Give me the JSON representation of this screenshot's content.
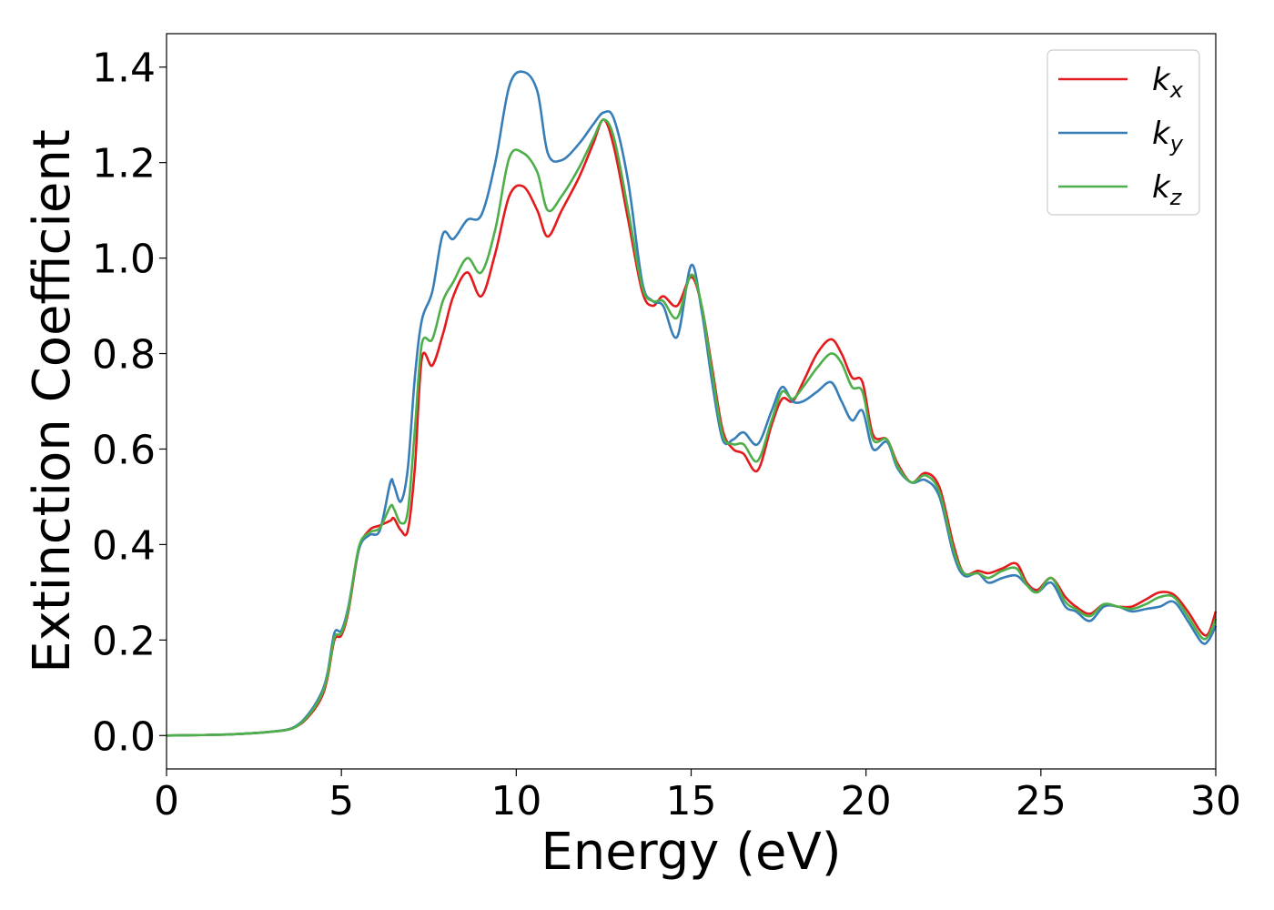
{
  "chart_data": {
    "type": "line",
    "xlabel": "Energy (eV)",
    "ylabel": "Extinction Coefficient",
    "xlim": [
      0,
      30
    ],
    "ylim": [
      -0.07,
      1.47
    ],
    "xticks": [
      0,
      5,
      10,
      15,
      20,
      25,
      30
    ],
    "yticks": [
      0.0,
      0.2,
      0.4,
      0.6,
      0.8,
      1.0,
      1.2,
      1.4
    ],
    "xtick_labels": [
      "0",
      "5",
      "10",
      "15",
      "20",
      "25",
      "30"
    ],
    "ytick_labels": [
      "0.0",
      "0.2",
      "0.4",
      "0.6",
      "0.8",
      "1.0",
      "1.2",
      "1.4"
    ],
    "grid": false,
    "legend_position": "top-right",
    "series": [
      {
        "name": "k",
        "subscript": "x",
        "color": "#e41a1c",
        "points": [
          [
            0,
            0.0
          ],
          [
            1,
            0.001
          ],
          [
            2,
            0.003
          ],
          [
            3,
            0.008
          ],
          [
            3.6,
            0.015
          ],
          [
            4,
            0.035
          ],
          [
            4.4,
            0.075
          ],
          [
            4.6,
            0.12
          ],
          [
            4.8,
            0.2
          ],
          [
            5.0,
            0.21
          ],
          [
            5.2,
            0.26
          ],
          [
            5.5,
            0.39
          ],
          [
            5.8,
            0.43
          ],
          [
            6.1,
            0.44
          ],
          [
            6.4,
            0.45
          ],
          [
            6.5,
            0.455
          ],
          [
            6.7,
            0.43
          ],
          [
            6.9,
            0.43
          ],
          [
            7.1,
            0.56
          ],
          [
            7.3,
            0.79
          ],
          [
            7.6,
            0.775
          ],
          [
            7.9,
            0.84
          ],
          [
            8.2,
            0.92
          ],
          [
            8.6,
            0.97
          ],
          [
            9.0,
            0.92
          ],
          [
            9.4,
            1.01
          ],
          [
            9.8,
            1.13
          ],
          [
            10.2,
            1.15
          ],
          [
            10.6,
            1.1
          ],
          [
            10.9,
            1.045
          ],
          [
            11.3,
            1.1
          ],
          [
            11.8,
            1.17
          ],
          [
            12.2,
            1.24
          ],
          [
            12.5,
            1.29
          ],
          [
            12.8,
            1.23
          ],
          [
            13.2,
            1.08
          ],
          [
            13.6,
            0.93
          ],
          [
            13.9,
            0.9
          ],
          [
            14.2,
            0.92
          ],
          [
            14.6,
            0.9
          ],
          [
            15.0,
            0.96
          ],
          [
            15.3,
            0.9
          ],
          [
            15.6,
            0.77
          ],
          [
            15.9,
            0.64
          ],
          [
            16.2,
            0.6
          ],
          [
            16.5,
            0.59
          ],
          [
            16.9,
            0.555
          ],
          [
            17.3,
            0.65
          ],
          [
            17.6,
            0.705
          ],
          [
            17.9,
            0.7
          ],
          [
            18.2,
            0.74
          ],
          [
            18.6,
            0.8
          ],
          [
            19.0,
            0.83
          ],
          [
            19.3,
            0.8
          ],
          [
            19.6,
            0.75
          ],
          [
            19.9,
            0.74
          ],
          [
            20.2,
            0.63
          ],
          [
            20.6,
            0.62
          ],
          [
            20.9,
            0.57
          ],
          [
            21.3,
            0.53
          ],
          [
            21.7,
            0.55
          ],
          [
            22.1,
            0.52
          ],
          [
            22.5,
            0.4
          ],
          [
            22.8,
            0.34
          ],
          [
            23.2,
            0.345
          ],
          [
            23.5,
            0.34
          ],
          [
            23.9,
            0.35
          ],
          [
            24.3,
            0.36
          ],
          [
            24.6,
            0.32
          ],
          [
            24.9,
            0.305
          ],
          [
            25.3,
            0.33
          ],
          [
            25.7,
            0.29
          ],
          [
            26.0,
            0.27
          ],
          [
            26.4,
            0.255
          ],
          [
            26.8,
            0.275
          ],
          [
            27.2,
            0.27
          ],
          [
            27.6,
            0.27
          ],
          [
            28.0,
            0.285
          ],
          [
            28.4,
            0.3
          ],
          [
            28.8,
            0.295
          ],
          [
            29.2,
            0.26
          ],
          [
            29.6,
            0.215
          ],
          [
            29.8,
            0.215
          ],
          [
            30.0,
            0.26
          ]
        ]
      },
      {
        "name": "k",
        "subscript": "y",
        "color": "#377eb8",
        "points": [
          [
            0,
            0.0
          ],
          [
            1,
            0.001
          ],
          [
            2,
            0.003
          ],
          [
            3,
            0.008
          ],
          [
            3.6,
            0.016
          ],
          [
            4,
            0.04
          ],
          [
            4.4,
            0.085
          ],
          [
            4.6,
            0.13
          ],
          [
            4.8,
            0.215
          ],
          [
            5.0,
            0.22
          ],
          [
            5.2,
            0.27
          ],
          [
            5.5,
            0.39
          ],
          [
            5.8,
            0.42
          ],
          [
            6.1,
            0.43
          ],
          [
            6.4,
            0.53
          ],
          [
            6.5,
            0.525
          ],
          [
            6.7,
            0.49
          ],
          [
            6.9,
            0.56
          ],
          [
            7.1,
            0.75
          ],
          [
            7.3,
            0.87
          ],
          [
            7.6,
            0.93
          ],
          [
            7.9,
            1.05
          ],
          [
            8.2,
            1.04
          ],
          [
            8.6,
            1.08
          ],
          [
            9.0,
            1.09
          ],
          [
            9.4,
            1.2
          ],
          [
            9.8,
            1.36
          ],
          [
            10.2,
            1.39
          ],
          [
            10.6,
            1.35
          ],
          [
            10.9,
            1.22
          ],
          [
            11.3,
            1.205
          ],
          [
            11.8,
            1.24
          ],
          [
            12.2,
            1.28
          ],
          [
            12.5,
            1.305
          ],
          [
            12.8,
            1.29
          ],
          [
            13.2,
            1.16
          ],
          [
            13.6,
            0.95
          ],
          [
            13.9,
            0.91
          ],
          [
            14.2,
            0.9
          ],
          [
            14.6,
            0.835
          ],
          [
            15.0,
            0.985
          ],
          [
            15.3,
            0.89
          ],
          [
            15.6,
            0.74
          ],
          [
            15.9,
            0.62
          ],
          [
            16.2,
            0.62
          ],
          [
            16.5,
            0.635
          ],
          [
            16.9,
            0.61
          ],
          [
            17.3,
            0.68
          ],
          [
            17.6,
            0.73
          ],
          [
            17.9,
            0.7
          ],
          [
            18.2,
            0.7
          ],
          [
            18.6,
            0.72
          ],
          [
            19.0,
            0.74
          ],
          [
            19.3,
            0.7
          ],
          [
            19.6,
            0.66
          ],
          [
            19.9,
            0.68
          ],
          [
            20.2,
            0.6
          ],
          [
            20.6,
            0.615
          ],
          [
            20.9,
            0.56
          ],
          [
            21.3,
            0.53
          ],
          [
            21.7,
            0.535
          ],
          [
            22.1,
            0.5
          ],
          [
            22.5,
            0.38
          ],
          [
            22.8,
            0.335
          ],
          [
            23.2,
            0.34
          ],
          [
            23.5,
            0.32
          ],
          [
            23.9,
            0.33
          ],
          [
            24.3,
            0.335
          ],
          [
            24.6,
            0.315
          ],
          [
            24.9,
            0.3
          ],
          [
            25.3,
            0.32
          ],
          [
            25.7,
            0.27
          ],
          [
            26.0,
            0.26
          ],
          [
            26.4,
            0.24
          ],
          [
            26.8,
            0.27
          ],
          [
            27.2,
            0.27
          ],
          [
            27.6,
            0.26
          ],
          [
            28.0,
            0.265
          ],
          [
            28.4,
            0.27
          ],
          [
            28.8,
            0.28
          ],
          [
            29.2,
            0.24
          ],
          [
            29.6,
            0.195
          ],
          [
            29.8,
            0.2
          ],
          [
            30.0,
            0.23
          ]
        ]
      },
      {
        "name": "k",
        "subscript": "z",
        "color": "#4daf4a",
        "points": [
          [
            0,
            0.0
          ],
          [
            1,
            0.001
          ],
          [
            2,
            0.003
          ],
          [
            3,
            0.008
          ],
          [
            3.6,
            0.015
          ],
          [
            4,
            0.037
          ],
          [
            4.4,
            0.08
          ],
          [
            4.6,
            0.125
          ],
          [
            4.8,
            0.205
          ],
          [
            5.0,
            0.215
          ],
          [
            5.2,
            0.265
          ],
          [
            5.5,
            0.395
          ],
          [
            5.8,
            0.425
          ],
          [
            6.1,
            0.435
          ],
          [
            6.4,
            0.48
          ],
          [
            6.5,
            0.475
          ],
          [
            6.7,
            0.445
          ],
          [
            6.9,
            0.47
          ],
          [
            7.1,
            0.64
          ],
          [
            7.3,
            0.82
          ],
          [
            7.6,
            0.83
          ],
          [
            7.9,
            0.91
          ],
          [
            8.2,
            0.95
          ],
          [
            8.6,
            1.0
          ],
          [
            9.0,
            0.97
          ],
          [
            9.4,
            1.06
          ],
          [
            9.8,
            1.21
          ],
          [
            10.2,
            1.22
          ],
          [
            10.6,
            1.18
          ],
          [
            10.9,
            1.1
          ],
          [
            11.3,
            1.13
          ],
          [
            11.8,
            1.19
          ],
          [
            12.2,
            1.25
          ],
          [
            12.5,
            1.29
          ],
          [
            12.8,
            1.25
          ],
          [
            13.2,
            1.1
          ],
          [
            13.6,
            0.94
          ],
          [
            13.9,
            0.91
          ],
          [
            14.2,
            0.91
          ],
          [
            14.6,
            0.875
          ],
          [
            15.0,
            0.965
          ],
          [
            15.3,
            0.9
          ],
          [
            15.6,
            0.76
          ],
          [
            15.9,
            0.63
          ],
          [
            16.2,
            0.61
          ],
          [
            16.5,
            0.61
          ],
          [
            16.9,
            0.575
          ],
          [
            17.3,
            0.66
          ],
          [
            17.6,
            0.72
          ],
          [
            17.9,
            0.705
          ],
          [
            18.2,
            0.73
          ],
          [
            18.6,
            0.77
          ],
          [
            19.0,
            0.8
          ],
          [
            19.3,
            0.78
          ],
          [
            19.6,
            0.73
          ],
          [
            19.9,
            0.72
          ],
          [
            20.2,
            0.62
          ],
          [
            20.6,
            0.62
          ],
          [
            20.9,
            0.565
          ],
          [
            21.3,
            0.53
          ],
          [
            21.7,
            0.545
          ],
          [
            22.1,
            0.51
          ],
          [
            22.5,
            0.39
          ],
          [
            22.8,
            0.34
          ],
          [
            23.2,
            0.34
          ],
          [
            23.5,
            0.33
          ],
          [
            23.9,
            0.345
          ],
          [
            24.3,
            0.35
          ],
          [
            24.6,
            0.315
          ],
          [
            24.9,
            0.3
          ],
          [
            25.3,
            0.33
          ],
          [
            25.7,
            0.28
          ],
          [
            26.0,
            0.265
          ],
          [
            26.4,
            0.25
          ],
          [
            26.8,
            0.275
          ],
          [
            27.2,
            0.27
          ],
          [
            27.6,
            0.265
          ],
          [
            28.0,
            0.275
          ],
          [
            28.4,
            0.29
          ],
          [
            28.8,
            0.29
          ],
          [
            29.2,
            0.25
          ],
          [
            29.6,
            0.205
          ],
          [
            29.8,
            0.21
          ],
          [
            30.0,
            0.245
          ]
        ]
      }
    ]
  }
}
